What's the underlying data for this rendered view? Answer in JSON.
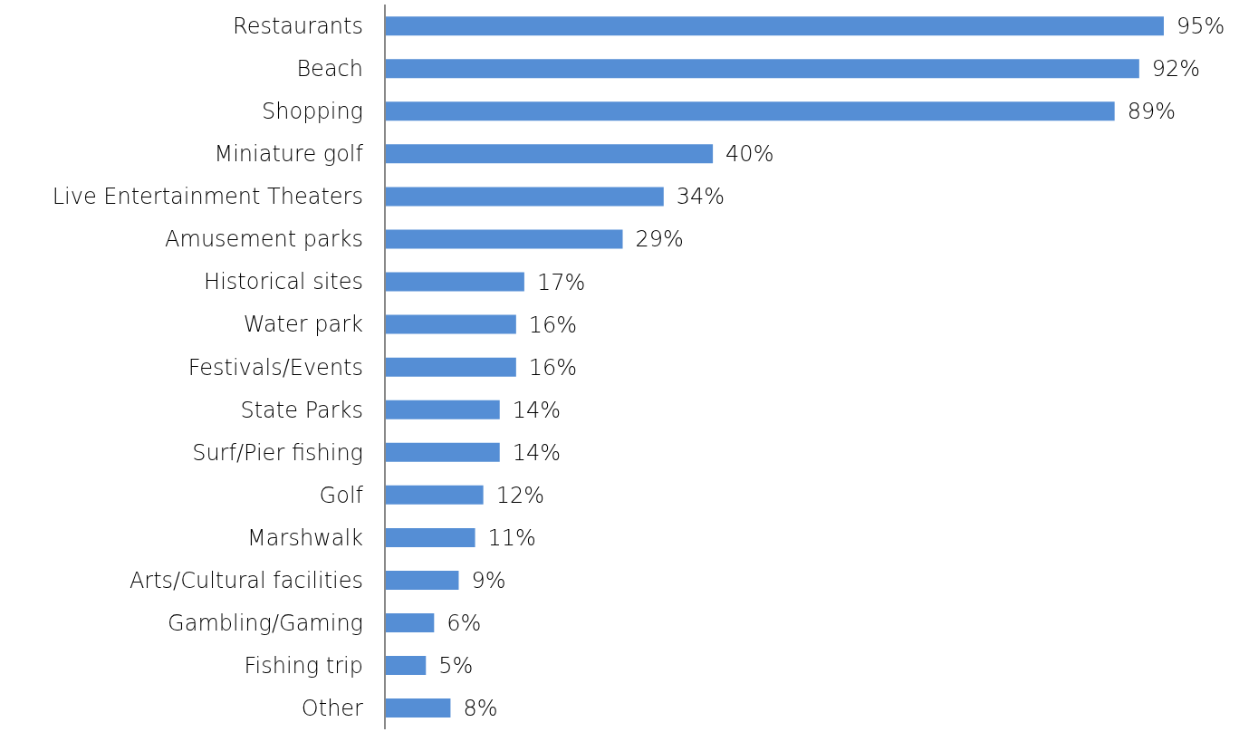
{
  "chart_data": {
    "type": "bar",
    "orientation": "horizontal",
    "categories": [
      "Restaurants",
      "Beach",
      "Shopping",
      "Miniature golf",
      "Live Entertainment Theaters",
      "Amusement parks",
      "Historical sites",
      "Water park",
      "Festivals/Events",
      "State Parks",
      "Surf/Pier fishing",
      "Golf",
      "Marshwalk",
      "Arts/Cultural facilities",
      "Gambling/Gaming",
      "Fishing trip",
      "Other"
    ],
    "values": [
      95,
      92,
      89,
      40,
      34,
      29,
      17,
      16,
      16,
      14,
      14,
      12,
      11,
      9,
      6,
      5,
      8
    ],
    "value_labels": [
      "95%",
      "92%",
      "89%",
      "40%",
      "34%",
      "29%",
      "17%",
      "16%",
      "16%",
      "14%",
      "14%",
      "12%",
      "11%",
      "9%",
      "6%",
      "5%",
      "8%"
    ],
    "color": "#558ed5",
    "grid": false,
    "legend": false,
    "tick_labels": "y"
  }
}
